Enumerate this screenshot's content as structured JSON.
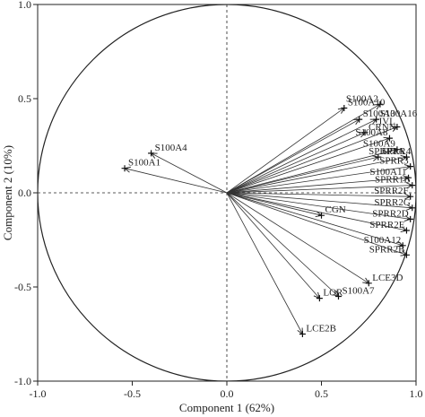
{
  "chart_data": {
    "type": "scatter",
    "subtype": "pca-correlation-circle",
    "xlabel": "Component 1 (62%)",
    "ylabel": "Component 2 (10%)",
    "xlim": [
      -1.0,
      1.0
    ],
    "ylim": [
      -1.0,
      1.0
    ],
    "x_ticks": [
      "-1.0",
      "-0.5",
      "0.0",
      "0.5",
      "1.0"
    ],
    "y_ticks": [
      "1.0",
      "0.5",
      "0.0",
      "-0.5",
      "-1.0"
    ],
    "unit_circle": true,
    "zero_lines": "dashed",
    "grid": false,
    "legend": "none",
    "line_color": "#333333",
    "points": [
      {
        "label": "S100A4",
        "x": -0.4,
        "y": 0.21
      },
      {
        "label": "S100A1",
        "x": -0.54,
        "y": 0.13
      },
      {
        "label": "S100A2",
        "x": 0.81,
        "y": 0.47
      },
      {
        "label": "S100A10",
        "x": 0.62,
        "y": 0.45
      },
      {
        "label": "S100A3",
        "x": 0.7,
        "y": 0.39
      },
      {
        "label": "S100A16",
        "x": 0.79,
        "y": 0.39
      },
      {
        "label": "IVL",
        "x": 0.9,
        "y": 0.35
      },
      {
        "label": "CRNN",
        "x": 0.73,
        "y": 0.32
      },
      {
        "label": "S100A8",
        "x": 0.86,
        "y": 0.29
      },
      {
        "label": "S100A9",
        "x": 0.9,
        "y": 0.23
      },
      {
        "label": "SPRR4",
        "x": 0.8,
        "y": 0.19
      },
      {
        "label": "SPRR1A",
        "x": 0.95,
        "y": 0.19
      },
      {
        "label": "SPRR3",
        "x": 0.97,
        "y": 0.14
      },
      {
        "label": "S100A11",
        "x": 0.96,
        "y": 0.08
      },
      {
        "label": "SPRR1B",
        "x": 0.98,
        "y": 0.04
      },
      {
        "label": "SPRR2F",
        "x": 0.97,
        "y": -0.02
      },
      {
        "label": "SPRR2G",
        "x": 0.98,
        "y": -0.08
      },
      {
        "label": "SPRR2D",
        "x": 0.97,
        "y": -0.14
      },
      {
        "label": "SPRR2E",
        "x": 0.95,
        "y": -0.2
      },
      {
        "label": "CGN",
        "x": 0.5,
        "y": -0.12
      },
      {
        "label": "S100A12",
        "x": 0.93,
        "y": -0.28
      },
      {
        "label": "SPRR2B",
        "x": 0.95,
        "y": -0.33
      },
      {
        "label": "LCE3D",
        "x": 0.75,
        "y": -0.48
      },
      {
        "label": "S100A7",
        "x": 0.59,
        "y": -0.55
      },
      {
        "label": "LOR",
        "x": 0.49,
        "y": -0.56
      },
      {
        "label": "LCE2B",
        "x": 0.4,
        "y": -0.75
      }
    ]
  }
}
